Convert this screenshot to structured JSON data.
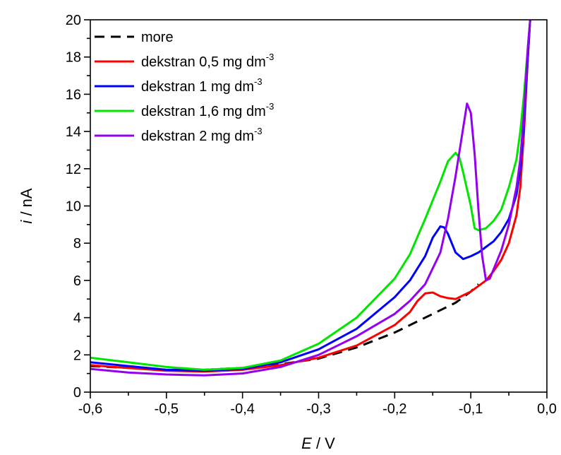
{
  "chart_data": {
    "type": "line",
    "xlabel_italic": "E",
    "xlabel_unit": " / V",
    "ylabel_italic": "i",
    "ylabel_unit": " / nA",
    "xlim": [
      -0.6,
      0.0
    ],
    "ylim": [
      0,
      20
    ],
    "x_major_ticks": [
      -0.6,
      -0.5,
      -0.4,
      -0.3,
      -0.2,
      -0.1,
      0.0
    ],
    "x_tick_labels": [
      "-0,6",
      "-0,5",
      "-0,4",
      "-0,3",
      "-0,2",
      "-0,1",
      "0,0"
    ],
    "y_major_ticks": [
      0,
      2,
      4,
      6,
      8,
      10,
      12,
      14,
      16,
      18,
      20
    ],
    "y_tick_labels": [
      "0",
      "2",
      "4",
      "6",
      "8",
      "10",
      "12",
      "14",
      "16",
      "18",
      "20"
    ],
    "grid": false,
    "legend_position": "top-left",
    "series": [
      {
        "name": "more",
        "name_sup": "",
        "color": "#000000",
        "dash": true,
        "points": [
          [
            -0.6,
            1.4
          ],
          [
            -0.55,
            1.3
          ],
          [
            -0.5,
            1.2
          ],
          [
            -0.45,
            1.2
          ],
          [
            -0.4,
            1.3
          ],
          [
            -0.35,
            1.5
          ],
          [
            -0.3,
            1.8
          ],
          [
            -0.25,
            2.4
          ],
          [
            -0.2,
            3.2
          ],
          [
            -0.15,
            4.2
          ],
          [
            -0.12,
            4.8
          ],
          [
            -0.1,
            5.4
          ],
          [
            -0.09,
            5.8
          ]
        ]
      },
      {
        "name": "dekstran 0,5 mg dm",
        "name_sup": "-3",
        "color": "#ff0000",
        "dash": false,
        "points": [
          [
            -0.6,
            1.45
          ],
          [
            -0.57,
            1.35
          ],
          [
            -0.55,
            1.3
          ],
          [
            -0.5,
            1.15
          ],
          [
            -0.45,
            1.1
          ],
          [
            -0.4,
            1.2
          ],
          [
            -0.35,
            1.45
          ],
          [
            -0.3,
            1.85
          ],
          [
            -0.25,
            2.5
          ],
          [
            -0.2,
            3.6
          ],
          [
            -0.18,
            4.3
          ],
          [
            -0.17,
            4.9
          ],
          [
            -0.16,
            5.3
          ],
          [
            -0.15,
            5.35
          ],
          [
            -0.14,
            5.15
          ],
          [
            -0.13,
            5.05
          ],
          [
            -0.12,
            5.0
          ],
          [
            -0.11,
            5.2
          ],
          [
            -0.1,
            5.4
          ],
          [
            -0.09,
            5.7
          ],
          [
            -0.08,
            6.0
          ],
          [
            -0.07,
            6.5
          ],
          [
            -0.06,
            7.1
          ],
          [
            -0.05,
            8.0
          ],
          [
            -0.04,
            9.5
          ],
          [
            -0.035,
            11.0
          ],
          [
            -0.03,
            14.0
          ],
          [
            -0.025,
            18.0
          ],
          [
            -0.022,
            20.0
          ]
        ]
      },
      {
        "name": "dekstran 1 mg dm",
        "name_sup": "-3",
        "color": "#0000ff",
        "dash": false,
        "points": [
          [
            -0.6,
            1.6
          ],
          [
            -0.55,
            1.4
          ],
          [
            -0.5,
            1.2
          ],
          [
            -0.45,
            1.15
          ],
          [
            -0.4,
            1.25
          ],
          [
            -0.35,
            1.6
          ],
          [
            -0.3,
            2.3
          ],
          [
            -0.25,
            3.4
          ],
          [
            -0.2,
            5.1
          ],
          [
            -0.18,
            6.0
          ],
          [
            -0.16,
            7.3
          ],
          [
            -0.15,
            8.3
          ],
          [
            -0.14,
            8.9
          ],
          [
            -0.135,
            8.85
          ],
          [
            -0.13,
            8.5
          ],
          [
            -0.12,
            7.5
          ],
          [
            -0.11,
            7.15
          ],
          [
            -0.1,
            7.3
          ],
          [
            -0.09,
            7.5
          ],
          [
            -0.08,
            7.8
          ],
          [
            -0.07,
            8.1
          ],
          [
            -0.06,
            8.6
          ],
          [
            -0.05,
            9.3
          ],
          [
            -0.04,
            10.6
          ],
          [
            -0.035,
            12.0
          ],
          [
            -0.03,
            14.5
          ],
          [
            -0.025,
            18.0
          ],
          [
            -0.022,
            20.0
          ]
        ]
      },
      {
        "name": "dekstran 1,6 mg dm",
        "name_sup": "-3",
        "color": "#00e600",
        "dash": false,
        "points": [
          [
            -0.6,
            1.85
          ],
          [
            -0.55,
            1.6
          ],
          [
            -0.5,
            1.35
          ],
          [
            -0.45,
            1.2
          ],
          [
            -0.4,
            1.3
          ],
          [
            -0.35,
            1.7
          ],
          [
            -0.3,
            2.6
          ],
          [
            -0.25,
            4.0
          ],
          [
            -0.2,
            6.1
          ],
          [
            -0.18,
            7.4
          ],
          [
            -0.16,
            9.3
          ],
          [
            -0.14,
            11.3
          ],
          [
            -0.13,
            12.4
          ],
          [
            -0.12,
            12.85
          ],
          [
            -0.115,
            12.6
          ],
          [
            -0.11,
            11.8
          ],
          [
            -0.1,
            10.0
          ],
          [
            -0.095,
            8.8
          ],
          [
            -0.09,
            8.7
          ],
          [
            -0.08,
            8.8
          ],
          [
            -0.07,
            9.2
          ],
          [
            -0.06,
            9.8
          ],
          [
            -0.05,
            11.0
          ],
          [
            -0.04,
            12.5
          ],
          [
            -0.035,
            14.0
          ],
          [
            -0.03,
            16.0
          ],
          [
            -0.025,
            18.5
          ],
          [
            -0.022,
            20.0
          ]
        ]
      },
      {
        "name": "dekstran 2 mg dm",
        "name_sup": "-3",
        "color": "#9400f0",
        "dash": false,
        "points": [
          [
            -0.6,
            1.25
          ],
          [
            -0.55,
            1.05
          ],
          [
            -0.5,
            0.95
          ],
          [
            -0.45,
            0.9
          ],
          [
            -0.4,
            1.0
          ],
          [
            -0.35,
            1.35
          ],
          [
            -0.3,
            2.0
          ],
          [
            -0.25,
            3.0
          ],
          [
            -0.2,
            4.2
          ],
          [
            -0.18,
            4.9
          ],
          [
            -0.16,
            5.8
          ],
          [
            -0.14,
            7.5
          ],
          [
            -0.13,
            9.3
          ],
          [
            -0.12,
            11.6
          ],
          [
            -0.11,
            14.2
          ],
          [
            -0.105,
            15.5
          ],
          [
            -0.1,
            15.0
          ],
          [
            -0.095,
            12.8
          ],
          [
            -0.09,
            9.8
          ],
          [
            -0.085,
            7.3
          ],
          [
            -0.08,
            6.0
          ],
          [
            -0.075,
            6.1
          ],
          [
            -0.07,
            6.6
          ],
          [
            -0.06,
            7.6
          ],
          [
            -0.05,
            9.0
          ],
          [
            -0.04,
            11.0
          ],
          [
            -0.035,
            12.5
          ],
          [
            -0.03,
            15.0
          ],
          [
            -0.025,
            18.5
          ],
          [
            -0.022,
            20.0
          ]
        ]
      }
    ]
  }
}
